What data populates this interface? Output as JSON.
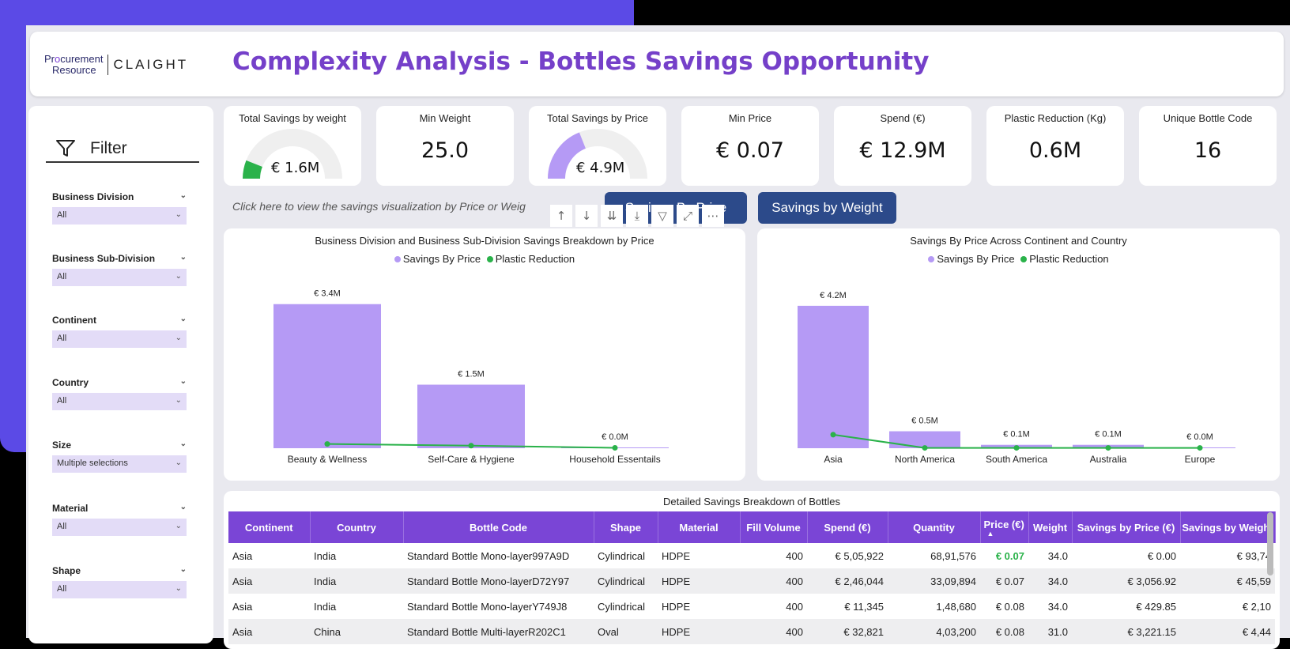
{
  "header": {
    "logo_procurement_a": "Pr",
    "logo_procurement_o": "o",
    "logo_procurement_b": "curement",
    "logo_resource": "Resource",
    "logo_claight": "CLAIGHT",
    "title": "Complexity Analysis - Bottles Savings Opportunity"
  },
  "filter": {
    "title": "Filter",
    "slicers": [
      {
        "label": "Business Division",
        "value": "All"
      },
      {
        "label": "Business Sub-Division",
        "value": "All"
      },
      {
        "label": "Continent",
        "value": "All"
      },
      {
        "label": "Country",
        "value": "All"
      },
      {
        "label": "Size",
        "value": "Multiple selections"
      },
      {
        "label": "Material",
        "value": "All"
      },
      {
        "label": "Shape",
        "value": "All"
      }
    ]
  },
  "kpis": [
    {
      "title": "Total Savings by weight",
      "value": "€ 1.6M",
      "gauge_fraction": 0.12,
      "gauge_color": "#2ab24a"
    },
    {
      "title": "Min Weight",
      "value": "25.0"
    },
    {
      "title": "Total Savings by Price",
      "value": "€ 4.9M",
      "gauge_fraction": 0.38,
      "gauge_color": "#b59af5"
    },
    {
      "title": "Min Price",
      "value": "€ 0.07"
    },
    {
      "title": "Spend (€)",
      "value": "€ 12.9M"
    },
    {
      "title": "Plastic Reduction (Kg)",
      "value": "0.6M"
    },
    {
      "title": "Unique Bottle Code",
      "value": "16"
    }
  ],
  "hint": "Click here to view the savings visualization by Price or Weig",
  "buttons": {
    "by_price": "Savings By Price",
    "by_weight": "Savings by Weight"
  },
  "chart_data": [
    {
      "type": "bar",
      "title": "Business Division and Business Sub-Division Savings Breakdown by Price",
      "categories": [
        "Beauty & Wellness",
        "Self-Care & Hygiene",
        "Household Essentails"
      ],
      "series": [
        {
          "name": "Savings By Price",
          "values": [
            3.4,
            1.5,
            0.0
          ],
          "labels": [
            "€ 3.4M",
            "€ 1.5M",
            "€ 0.0M"
          ],
          "color": "#b59af5"
        },
        {
          "name": "Plastic Reduction",
          "values": [
            0.1,
            0.06,
            0.01
          ],
          "color": "#2ab24a"
        }
      ],
      "ylim": [
        0,
        3.6
      ]
    },
    {
      "type": "bar",
      "title": "Savings By Price Across Continent and Country",
      "categories": [
        "Asia",
        "North America",
        "South America",
        "Australia",
        "Europe"
      ],
      "series": [
        {
          "name": "Savings By Price",
          "values": [
            4.2,
            0.5,
            0.1,
            0.1,
            0.0
          ],
          "labels": [
            "€ 4.2M",
            "€ 0.5M",
            "€ 0.1M",
            "€ 0.1M",
            "€ 0.0M"
          ],
          "color": "#b59af5"
        },
        {
          "name": "Plastic Reduction",
          "values": [
            0.4,
            0.01,
            0.01,
            0.01,
            0.01
          ],
          "color": "#2ab24a"
        }
      ],
      "ylim": [
        0,
        4.5
      ]
    }
  ],
  "table": {
    "title": "Detailed Savings Breakdown of Bottles",
    "columns": [
      "Continent",
      "Country",
      "Bottle Code",
      "Shape",
      "Material",
      "Fill Volume",
      "Spend (€)",
      "Quantity",
      "Price (€)",
      "Weight",
      "Savings by Price (€)",
      "Savings by Weight"
    ],
    "rows": [
      [
        "Asia",
        "India",
        "Standard Bottle Mono-layer997A9D",
        "Cylindrical",
        "HDPE",
        "400",
        "€ 5,05,922",
        "68,91,576",
        "€ 0.07",
        "34.0",
        "€ 0.00",
        "€ 93,74"
      ],
      [
        "Asia",
        "India",
        "Standard Bottle Mono-layerD72Y97",
        "Cylindrical",
        "HDPE",
        "400",
        "€ 2,46,044",
        "33,09,894",
        "€ 0.07",
        "34.0",
        "€ 3,056.92",
        "€ 45,59"
      ],
      [
        "Asia",
        "India",
        "Standard Bottle Mono-layerY749J8",
        "Cylindrical",
        "HDPE",
        "400",
        "€ 11,345",
        "1,48,680",
        "€ 0.08",
        "34.0",
        "€ 429.85",
        "€ 2,10"
      ],
      [
        "Asia",
        "China",
        "Standard Bottle Multi-layerR202C1",
        "Oval",
        "HDPE",
        "400",
        "€ 32,821",
        "4,03,200",
        "€ 0.08",
        "31.0",
        "€ 3,221.15",
        "€ 4,44"
      ]
    ]
  }
}
